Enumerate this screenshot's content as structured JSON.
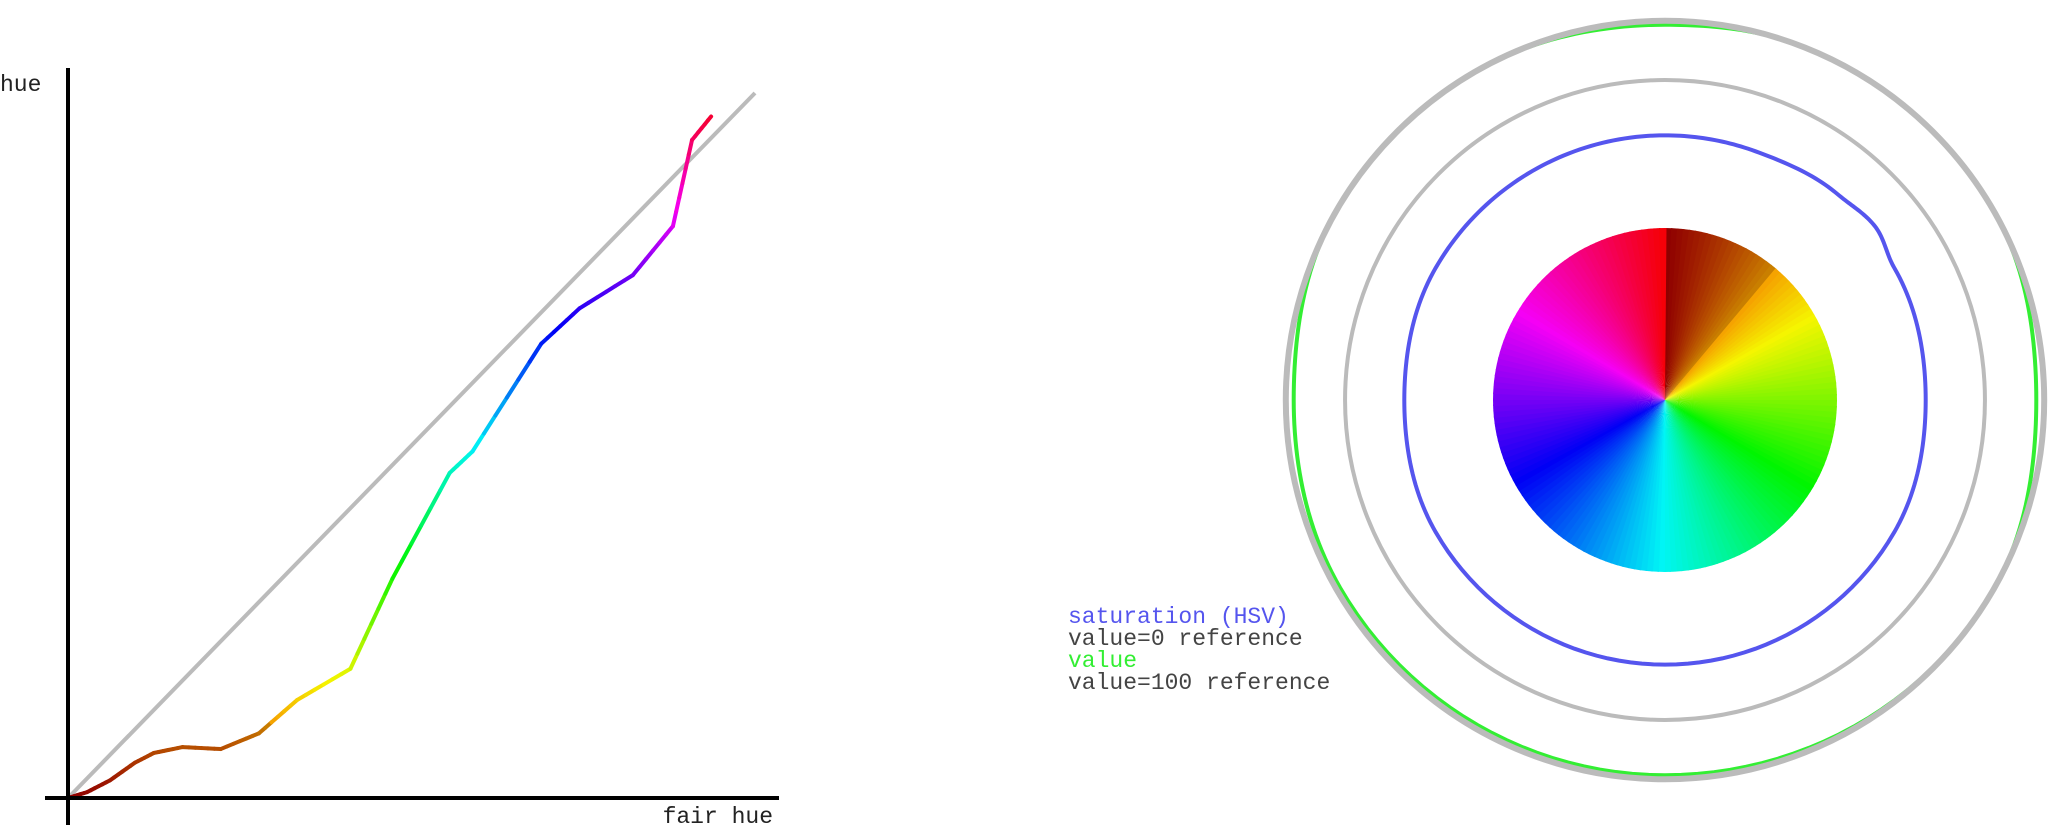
{
  "chart_data": [
    {
      "type": "line",
      "title": "",
      "xlabel": "fair hue",
      "ylabel": "hue",
      "xlim": [
        0,
        360
      ],
      "ylim": [
        0,
        360
      ],
      "grid": false,
      "reference_line": {
        "name": "identity",
        "color": "#bbbbbb",
        "points": [
          [
            0,
            0
          ],
          [
            360,
            360
          ]
        ]
      },
      "series": [
        {
          "name": "hue",
          "colored_by": "hue",
          "points": [
            [
              0,
              0
            ],
            [
              10,
              3
            ],
            [
              22,
              9
            ],
            [
              35,
              18
            ],
            [
              45,
              23
            ],
            [
              60,
              26
            ],
            [
              80,
              25
            ],
            [
              100,
              33
            ],
            [
              120,
              50
            ],
            [
              148,
              66
            ],
            [
              170,
              112
            ],
            [
              200,
              166
            ],
            [
              212,
              177
            ],
            [
              248,
              232
            ],
            [
              268,
              250
            ],
            [
              296,
              267
            ],
            [
              317,
              292
            ],
            [
              327,
              336
            ],
            [
              337,
              348
            ]
          ]
        }
      ]
    },
    {
      "type": "polar",
      "title": "",
      "center_swatch": "hue wheel",
      "rlim": [
        0,
        100
      ],
      "series": [
        {
          "name": "saturation (HSV)",
          "color": "#5555ee",
          "points": [
            [
              0,
              67
            ],
            [
              20,
              67
            ],
            [
              40,
              68
            ],
            [
              50,
              69
            ],
            [
              60,
              67
            ],
            [
              90,
              66
            ],
            [
              120,
              67
            ],
            [
              180,
              67
            ],
            [
              240,
              67
            ],
            [
              270,
              66
            ],
            [
              300,
              67
            ],
            [
              330,
              67
            ],
            [
              360,
              67
            ]
          ]
        },
        {
          "name": "value=0 reference",
          "color": "#bbbbbb",
          "constant_r": 81
        },
        {
          "name": "value",
          "color": "#33ee33",
          "points": [
            [
              0,
              95
            ],
            [
              20,
              96
            ],
            [
              40,
              96
            ],
            [
              60,
              96
            ],
            [
              90,
              94
            ],
            [
              120,
              96
            ],
            [
              180,
              95
            ],
            [
              240,
              95
            ],
            [
              270,
              94
            ],
            [
              300,
              96
            ],
            [
              330,
              96
            ],
            [
              360,
              95
            ]
          ]
        },
        {
          "name": "value=100 reference",
          "color": "#bbbbbb",
          "constant_r": 96
        }
      ]
    }
  ]
}
